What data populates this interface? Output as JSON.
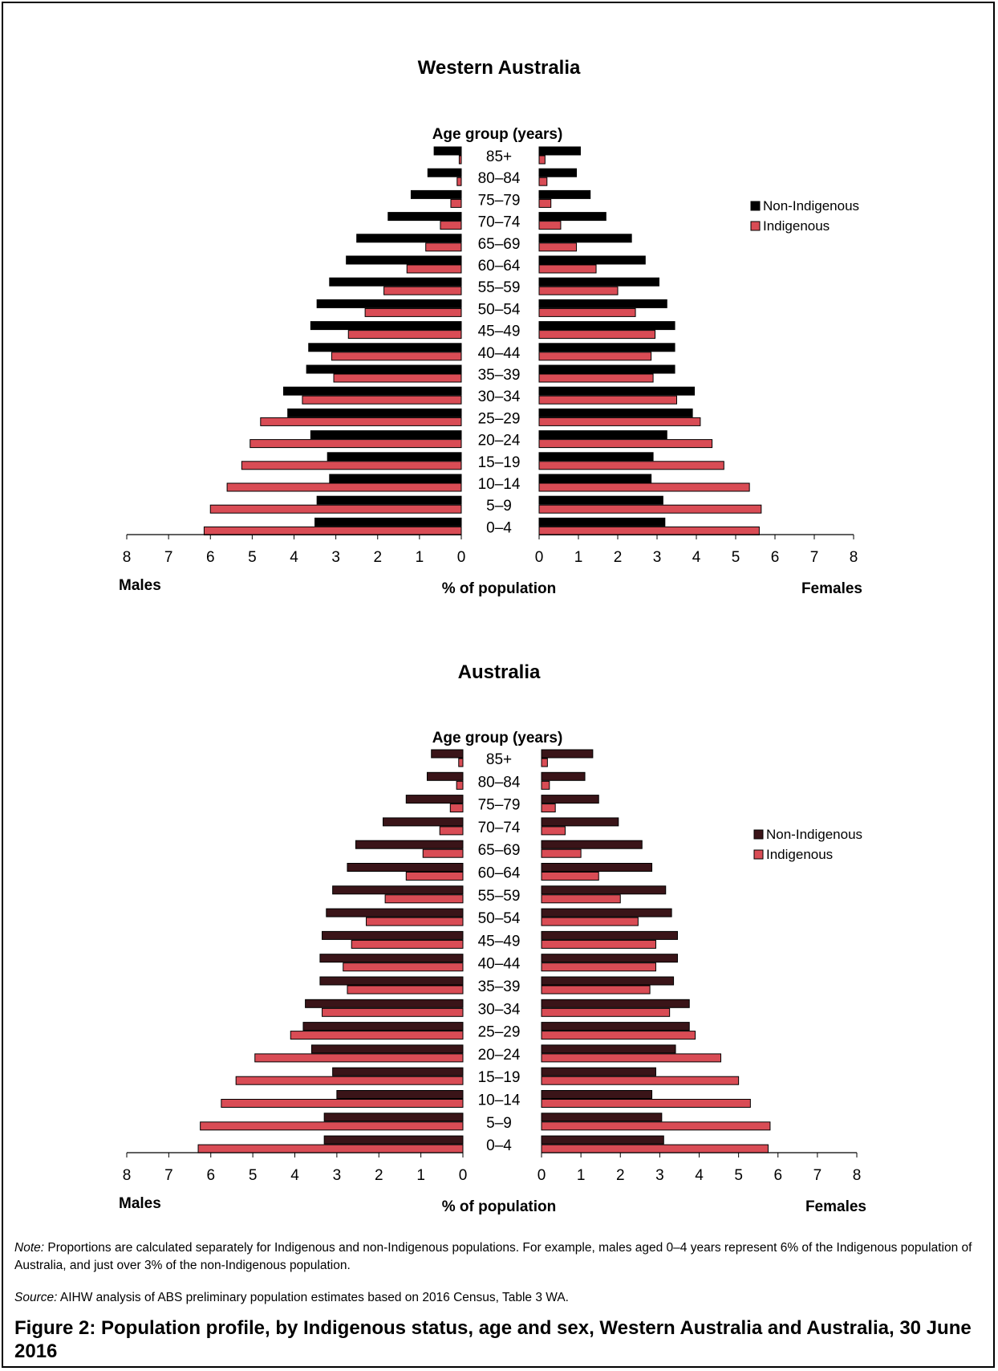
{
  "chart_data": [
    {
      "type": "bar",
      "orientation": "horizontal-pyramid",
      "title": "Western Australia",
      "age_axis_title": "Age group (years)",
      "xlabel": "% of population",
      "left_label": "Males",
      "right_label": "Females",
      "xlim": [
        0,
        8
      ],
      "x_ticks": [
        "8",
        "7",
        "6",
        "5",
        "4",
        "3",
        "2",
        "1",
        "0"
      ],
      "x_ticks_right": [
        "0",
        "1",
        "2",
        "3",
        "4",
        "5",
        "6",
        "7",
        "8"
      ],
      "legend_position": "right",
      "categories": [
        "85+",
        "80–84",
        "75–79",
        "70–74",
        "65–69",
        "60–64",
        "55–59",
        "50–54",
        "45–49",
        "40–44",
        "35–39",
        "30–34",
        "25–29",
        "20–24",
        "15–19",
        "10–14",
        "5–9",
        "0–4"
      ],
      "series": [
        {
          "name": "Non-Indigenous",
          "color": "#000000",
          "males": [
            0.65,
            0.8,
            1.2,
            1.75,
            2.5,
            2.75,
            3.15,
            3.45,
            3.6,
            3.65,
            3.7,
            4.25,
            4.15,
            3.6,
            3.2,
            3.15,
            3.45,
            3.5
          ],
          "females": [
            1.05,
            0.95,
            1.3,
            1.7,
            2.35,
            2.7,
            3.05,
            3.25,
            3.45,
            3.45,
            3.45,
            3.95,
            3.9,
            3.25,
            2.9,
            2.85,
            3.15,
            3.2
          ]
        },
        {
          "name": "Indigenous",
          "color": "#d94c55",
          "males": [
            0.05,
            0.1,
            0.25,
            0.5,
            0.85,
            1.3,
            1.85,
            2.3,
            2.7,
            3.1,
            3.05,
            3.8,
            4.8,
            5.05,
            5.25,
            5.6,
            6.0,
            6.15
          ],
          "females": [
            0.15,
            0.2,
            0.3,
            0.55,
            0.95,
            1.45,
            2.0,
            2.45,
            2.95,
            2.85,
            2.9,
            3.5,
            4.1,
            4.4,
            4.7,
            5.35,
            5.65,
            5.6
          ]
        }
      ]
    },
    {
      "type": "bar",
      "orientation": "horizontal-pyramid",
      "title": "Australia",
      "age_axis_title": "Age group (years)",
      "xlabel": "% of population",
      "left_label": "Males",
      "right_label": "Females",
      "xlim": [
        0,
        8
      ],
      "x_ticks": [
        "8",
        "7",
        "6",
        "5",
        "4",
        "3",
        "2",
        "1",
        "0"
      ],
      "x_ticks_right": [
        "0",
        "1",
        "2",
        "3",
        "4",
        "5",
        "6",
        "7",
        "8"
      ],
      "legend_position": "right",
      "categories": [
        "85+",
        "80–84",
        "75–79",
        "70–74",
        "65–69",
        "60–64",
        "55–59",
        "50–54",
        "45–49",
        "40–44",
        "35–39",
        "30–34",
        "25–29",
        "20–24",
        "15–19",
        "10–14",
        "5–9",
        "0–4"
      ],
      "series": [
        {
          "name": "Non-Indigenous",
          "color": "#3a1418",
          "males": [
            0.75,
            0.85,
            1.35,
            1.9,
            2.55,
            2.75,
            3.1,
            3.25,
            3.35,
            3.4,
            3.4,
            3.75,
            3.8,
            3.6,
            3.1,
            3.0,
            3.3,
            3.3
          ],
          "females": [
            1.3,
            1.1,
            1.45,
            1.95,
            2.55,
            2.8,
            3.15,
            3.3,
            3.45,
            3.45,
            3.35,
            3.75,
            3.75,
            3.4,
            2.9,
            2.8,
            3.05,
            3.1
          ]
        },
        {
          "name": "Indigenous",
          "color": "#d94c55",
          "males": [
            0.1,
            0.15,
            0.3,
            0.55,
            0.95,
            1.35,
            1.85,
            2.3,
            2.65,
            2.85,
            2.75,
            3.35,
            4.1,
            4.95,
            5.4,
            5.75,
            6.25,
            6.3
          ],
          "females": [
            0.15,
            0.2,
            0.35,
            0.6,
            1.0,
            1.45,
            2.0,
            2.45,
            2.9,
            2.9,
            2.75,
            3.25,
            3.9,
            4.55,
            5.0,
            5.3,
            5.8,
            5.75
          ]
        }
      ]
    }
  ],
  "note": {
    "label": "Note:",
    "text": " Proportions are calculated separately for Indigenous and non-Indigenous populations. For example, males aged 0–4 years represent 6% of the Indigenous population of Australia, and just over 3% of the non-Indigenous population."
  },
  "source": {
    "label": "Source:",
    "text": " AIHW analysis of ABS preliminary population estimates based on 2016 Census, Table 3 WA."
  },
  "caption": "Figure 2: Population profile, by Indigenous status, age and sex, Western Australia and Australia, 30 June 2016"
}
